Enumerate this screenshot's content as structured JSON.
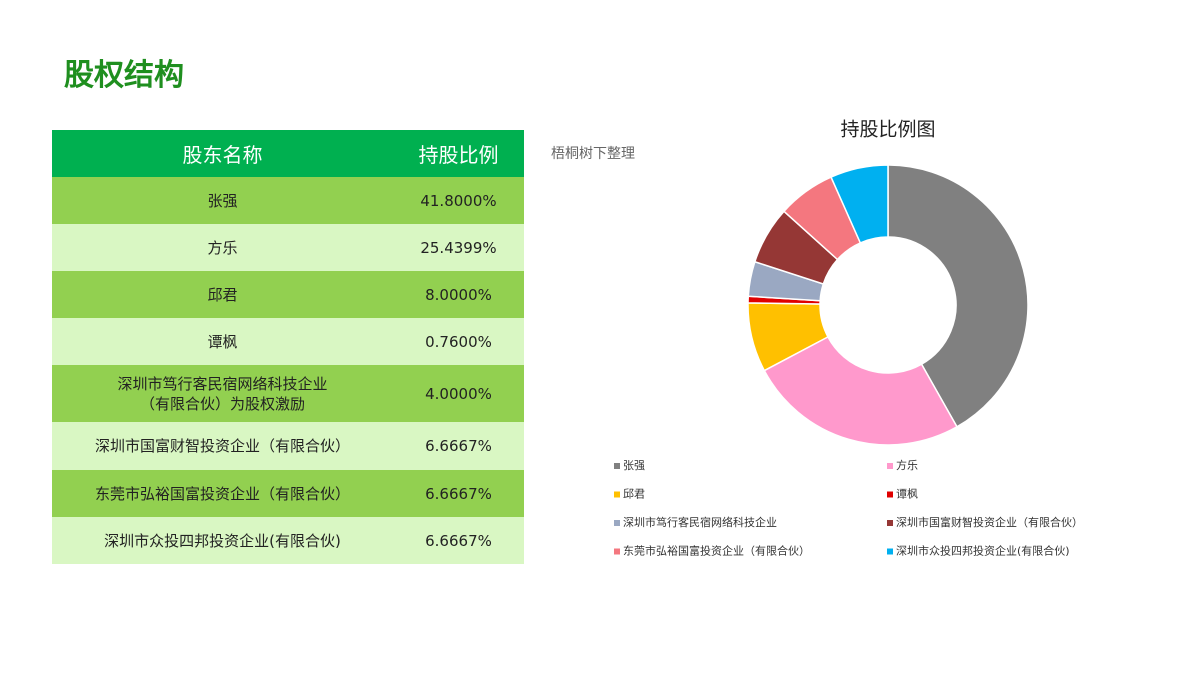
{
  "header": {
    "title": "股权结构"
  },
  "note": "梧桐树下整理",
  "table": {
    "columns": [
      "股东名称",
      "持股比例"
    ],
    "rows": [
      [
        "张强",
        "41.8000%"
      ],
      [
        "方乐",
        "25.4399%"
      ],
      [
        "邱君",
        "8.0000%"
      ],
      [
        "谭枫",
        "0.7600%"
      ],
      [
        "深圳市笃行客民宿网络科技企业\n（有限合伙）为股权激励",
        "4.0000%"
      ],
      [
        "深圳市国富财智投资企业（有限合伙）",
        "6.6667%"
      ],
      [
        "东莞市弘裕国富投资企业（有限合伙）",
        "6.6667%"
      ],
      [
        "深圳市众投四邦投资企业(有限合伙)",
        "6.6667%"
      ]
    ]
  },
  "chart_data": {
    "type": "donut",
    "title": "持股比例图",
    "categories": [
      "张强",
      "方乐",
      "邱君",
      "谭枫",
      "深圳市笃行客民宿网络科技企业",
      "深圳市国富财智投资企业（有限合伙）",
      "东莞市弘裕国富投资企业（有限合伙）",
      "深圳市众投四邦投资企业(有限合伙)"
    ],
    "values": [
      41.8,
      25.4399,
      8,
      0.76,
      4,
      6.6667,
      6.6667,
      6.6667
    ],
    "colors": [
      "#808080",
      "#ff99cc",
      "#ffc000",
      "#e00000",
      "#9aa8c2",
      "#953735",
      "#f4777f",
      "#00b0f0"
    ]
  }
}
